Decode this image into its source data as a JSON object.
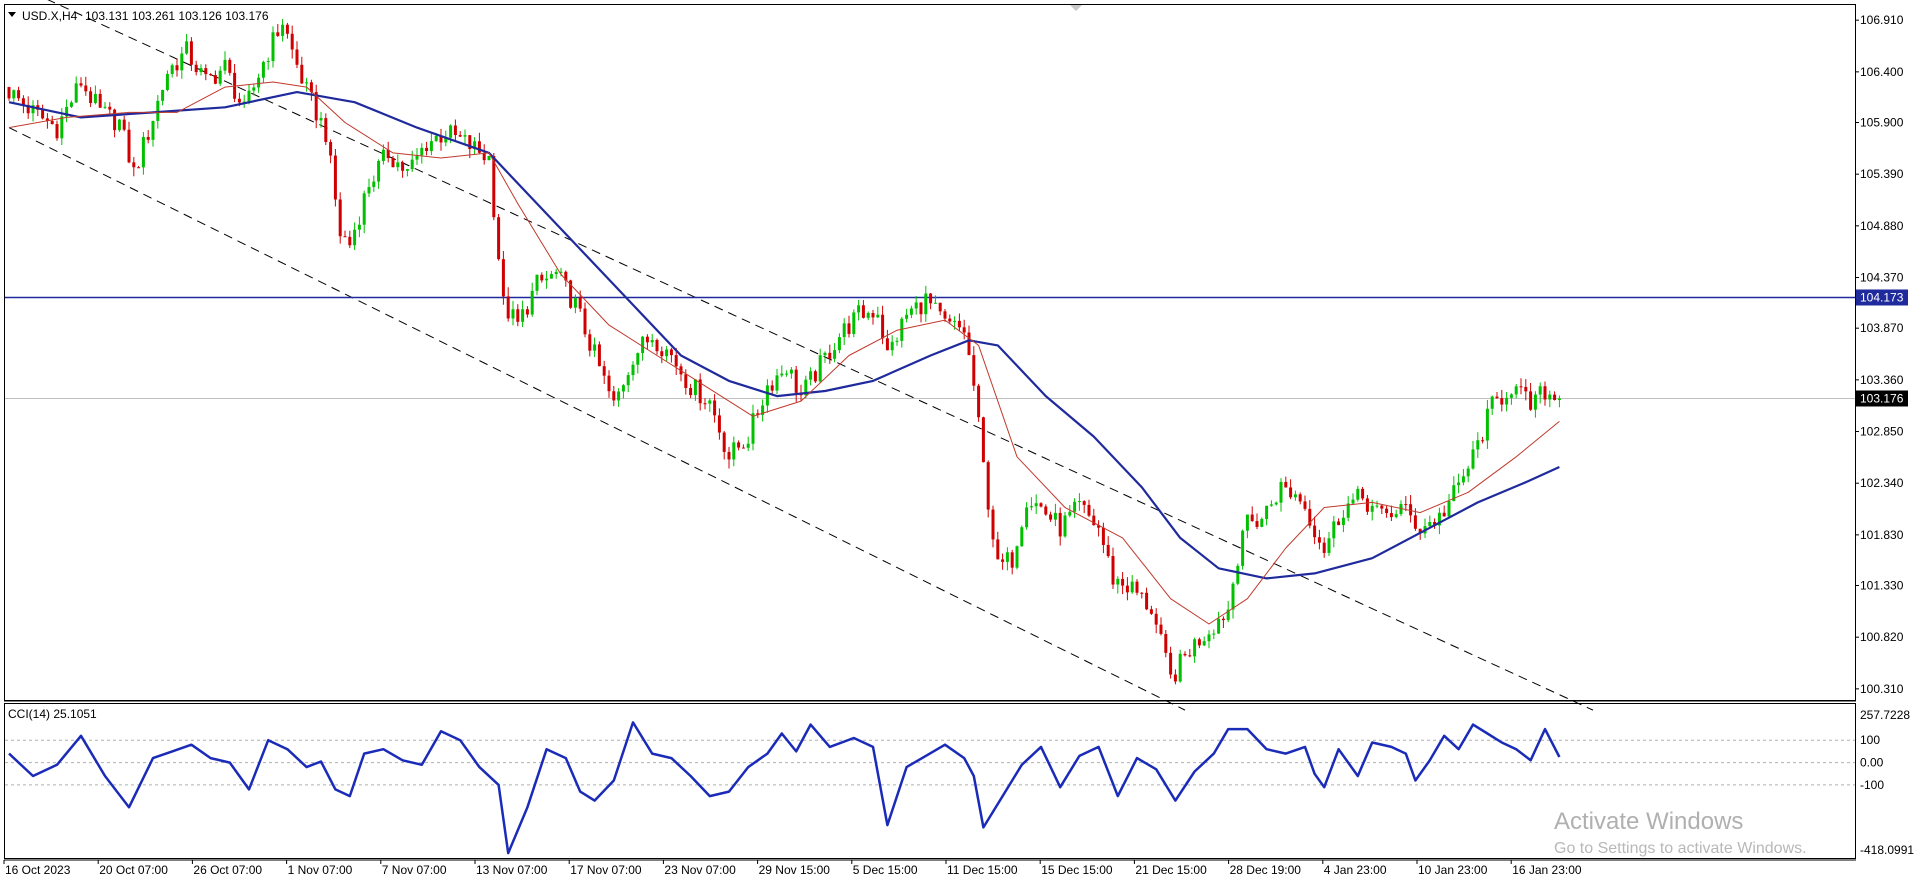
{
  "header": {
    "symbol": "USD.X,H4",
    "ohlc": "103.131 103.261 103.126 103.176"
  },
  "indicator": {
    "label": "CCI(14) 25.1051",
    "levels": [
      100,
      0,
      -100
    ],
    "level_labels": [
      "100",
      "0.00",
      "-100"
    ],
    "max_label": "257.7228",
    "min_label": "-418.0991",
    "ylim": [
      -418.0991,
      257.7228
    ]
  },
  "watermark": {
    "title": "Activate Windows",
    "subtitle": "Go to Settings to activate Windows."
  },
  "colors": {
    "bull": "#00c000",
    "bear": "#d00000",
    "ma_fast": "#c0392b",
    "ma_slow": "#1f2a9c",
    "hline": "#1f2a9c",
    "price_tag": "#1f2a9c",
    "current_tag": "#000000",
    "cci": "#1a2bb8",
    "channel": "#000000"
  },
  "chart_data": {
    "type": "candlestick",
    "symbol": "USD.X",
    "timeframe": "H4",
    "ylim": [
      100.2,
      107.05
    ],
    "y_ticks": [
      "106.910",
      "106.400",
      "105.900",
      "105.390",
      "104.880",
      "104.370",
      "103.870",
      "103.360",
      "102.850",
      "102.340",
      "101.830",
      "101.330",
      "100.820",
      "100.310"
    ],
    "x_ticks": [
      "16 Oct 2023",
      "20 Oct 07:00",
      "26 Oct 07:00",
      "1 Nov 07:00",
      "7 Nov 07:00",
      "13 Nov 07:00",
      "17 Nov 07:00",
      "23 Nov 07:00",
      "29 Nov 15:00",
      "5 Dec 15:00",
      "11 Dec 15:00",
      "15 Dec 15:00",
      "21 Dec 15:00",
      "28 Dec 19:00",
      "4 Jan 23:00",
      "10 Jan 23:00",
      "16 Jan 23:00"
    ],
    "horizontal_line": {
      "value": 104.173,
      "label": "104.173"
    },
    "current_price": {
      "value": 103.176,
      "label": "103.176"
    },
    "price_path": [
      [
        0,
        106.25
      ],
      [
        6,
        106.0
      ],
      [
        11,
        105.85
      ],
      [
        16,
        106.3
      ],
      [
        20,
        106.0
      ],
      [
        24,
        105.9
      ],
      [
        27,
        105.4
      ],
      [
        30,
        105.8
      ],
      [
        34,
        106.4
      ],
      [
        38,
        106.6
      ],
      [
        42,
        106.3
      ],
      [
        46,
        106.45
      ],
      [
        50,
        106.0
      ],
      [
        54,
        106.5
      ],
      [
        58,
        106.9
      ],
      [
        60,
        106.6
      ],
      [
        63,
        106.2
      ],
      [
        67,
        105.8
      ],
      [
        70,
        104.8
      ],
      [
        72,
        104.7
      ],
      [
        76,
        105.3
      ],
      [
        80,
        105.6
      ],
      [
        84,
        105.4
      ],
      [
        88,
        105.7
      ],
      [
        92,
        105.8
      ],
      [
        96,
        105.7
      ],
      [
        101,
        105.55
      ],
      [
        104,
        104.1
      ],
      [
        107,
        103.9
      ],
      [
        111,
        104.3
      ],
      [
        115,
        104.4
      ],
      [
        119,
        104.1
      ],
      [
        123,
        103.6
      ],
      [
        127,
        103.1
      ],
      [
        131,
        103.6
      ],
      [
        135,
        103.8
      ],
      [
        139,
        103.6
      ],
      [
        143,
        103.3
      ],
      [
        147,
        103.15
      ],
      [
        151,
        102.6
      ],
      [
        155,
        102.8
      ],
      [
        159,
        103.3
      ],
      [
        163,
        103.5
      ],
      [
        166,
        103.2
      ],
      [
        170,
        103.5
      ],
      [
        174,
        103.8
      ],
      [
        178,
        104.0
      ],
      [
        182,
        104.05
      ],
      [
        184,
        103.6
      ],
      [
        188,
        104.0
      ],
      [
        192,
        104.15
      ],
      [
        196,
        103.9
      ],
      [
        200,
        103.85
      ],
      [
        202,
        103.3
      ],
      [
        204,
        102.5
      ],
      [
        207,
        101.5
      ],
      [
        210,
        101.6
      ],
      [
        213,
        102.2
      ],
      [
        216,
        102.1
      ],
      [
        220,
        101.9
      ],
      [
        224,
        102.1
      ],
      [
        228,
        101.9
      ],
      [
        231,
        101.4
      ],
      [
        235,
        101.3
      ],
      [
        239,
        101.1
      ],
      [
        243,
        100.4
      ],
      [
        247,
        100.7
      ],
      [
        251,
        100.9
      ],
      [
        255,
        101.1
      ],
      [
        258,
        101.9
      ],
      [
        262,
        102.0
      ],
      [
        266,
        102.3
      ],
      [
        270,
        102.2
      ],
      [
        273,
        101.9
      ],
      [
        275,
        101.7
      ],
      [
        279,
        102.1
      ],
      [
        283,
        102.2
      ],
      [
        287,
        102.0
      ],
      [
        291,
        102.1
      ],
      [
        295,
        101.9
      ],
      [
        299,
        102.0
      ],
      [
        303,
        102.3
      ],
      [
        306,
        102.6
      ],
      [
        310,
        103.1
      ],
      [
        314,
        103.3
      ],
      [
        318,
        103.1
      ],
      [
        321,
        103.25
      ],
      [
        323,
        103.176
      ]
    ],
    "ma_fast": [
      [
        0,
        105.85
      ],
      [
        12,
        105.95
      ],
      [
        25,
        106.0
      ],
      [
        35,
        106.0
      ],
      [
        45,
        106.25
      ],
      [
        55,
        106.3
      ],
      [
        62,
        106.25
      ],
      [
        70,
        105.9
      ],
      [
        80,
        105.6
      ],
      [
        90,
        105.55
      ],
      [
        100,
        105.6
      ],
      [
        106,
        105.1
      ],
      [
        115,
        104.4
      ],
      [
        125,
        103.9
      ],
      [
        135,
        103.6
      ],
      [
        145,
        103.3
      ],
      [
        155,
        103.0
      ],
      [
        165,
        103.15
      ],
      [
        175,
        103.6
      ],
      [
        185,
        103.85
      ],
      [
        195,
        103.95
      ],
      [
        202,
        103.7
      ],
      [
        210,
        102.6
      ],
      [
        220,
        102.1
      ],
      [
        232,
        101.8
      ],
      [
        242,
        101.2
      ],
      [
        250,
        100.95
      ],
      [
        258,
        101.2
      ],
      [
        266,
        101.7
      ],
      [
        274,
        102.1
      ],
      [
        284,
        102.15
      ],
      [
        294,
        102.05
      ],
      [
        304,
        102.25
      ],
      [
        314,
        102.6
      ],
      [
        323,
        102.95
      ]
    ],
    "ma_slow": [
      [
        0,
        106.1
      ],
      [
        15,
        105.95
      ],
      [
        30,
        106.0
      ],
      [
        45,
        106.05
      ],
      [
        60,
        106.2
      ],
      [
        72,
        106.1
      ],
      [
        85,
        105.85
      ],
      [
        100,
        105.6
      ],
      [
        110,
        105.1
      ],
      [
        120,
        104.6
      ],
      [
        130,
        104.1
      ],
      [
        140,
        103.6
      ],
      [
        150,
        103.35
      ],
      [
        160,
        103.2
      ],
      [
        170,
        103.25
      ],
      [
        180,
        103.35
      ],
      [
        192,
        103.6
      ],
      [
        200,
        103.75
      ],
      [
        206,
        103.7
      ],
      [
        216,
        103.2
      ],
      [
        226,
        102.8
      ],
      [
        236,
        102.3
      ],
      [
        244,
        101.8
      ],
      [
        252,
        101.5
      ],
      [
        262,
        101.4
      ],
      [
        272,
        101.45
      ],
      [
        284,
        101.6
      ],
      [
        296,
        101.9
      ],
      [
        306,
        102.15
      ],
      [
        316,
        102.35
      ],
      [
        323,
        102.5
      ]
    ],
    "channel_upper": [
      [
        -12,
        107.55
      ],
      [
        330,
        100.1
      ]
    ],
    "channel_lower": [
      [
        0,
        105.85
      ],
      [
        245,
        100.1
      ]
    ],
    "cci_path": [
      [
        0,
        40
      ],
      [
        5,
        -60
      ],
      [
        10,
        -10
      ],
      [
        15,
        120
      ],
      [
        20,
        -60
      ],
      [
        25,
        -200
      ],
      [
        30,
        20
      ],
      [
        34,
        50
      ],
      [
        38,
        80
      ],
      [
        42,
        20
      ],
      [
        46,
        0
      ],
      [
        50,
        -120
      ],
      [
        54,
        100
      ],
      [
        58,
        60
      ],
      [
        62,
        -20
      ],
      [
        65,
        5
      ],
      [
        68,
        -120
      ],
      [
        71,
        -150
      ],
      [
        74,
        40
      ],
      [
        78,
        60
      ],
      [
        82,
        10
      ],
      [
        86,
        -10
      ],
      [
        90,
        140
      ],
      [
        94,
        100
      ],
      [
        98,
        -20
      ],
      [
        102,
        -100
      ],
      [
        104,
        -405
      ],
      [
        108,
        -200
      ],
      [
        112,
        60
      ],
      [
        116,
        20
      ],
      [
        119,
        -130
      ],
      [
        122,
        -170
      ],
      [
        126,
        -80
      ],
      [
        130,
        180
      ],
      [
        134,
        40
      ],
      [
        138,
        20
      ],
      [
        142,
        -60
      ],
      [
        146,
        -150
      ],
      [
        150,
        -130
      ],
      [
        154,
        -20
      ],
      [
        158,
        40
      ],
      [
        161,
        130
      ],
      [
        164,
        50
      ],
      [
        167,
        170
      ],
      [
        171,
        70
      ],
      [
        176,
        110
      ],
      [
        180,
        70
      ],
      [
        183,
        -280
      ],
      [
        187,
        -20
      ],
      [
        191,
        30
      ],
      [
        195,
        80
      ],
      [
        199,
        20
      ],
      [
        201,
        -60
      ],
      [
        203,
        -290
      ],
      [
        207,
        -150
      ],
      [
        211,
        -10
      ],
      [
        215,
        70
      ],
      [
        219,
        -110
      ],
      [
        223,
        30
      ],
      [
        227,
        70
      ],
      [
        231,
        -150
      ],
      [
        235,
        20
      ],
      [
        239,
        -30
      ],
      [
        243,
        -170
      ],
      [
        247,
        -40
      ],
      [
        251,
        40
      ],
      [
        254,
        150
      ],
      [
        258,
        150
      ],
      [
        262,
        60
      ],
      [
        266,
        40
      ],
      [
        270,
        70
      ],
      [
        272,
        -50
      ],
      [
        274,
        -110
      ],
      [
        277,
        60
      ],
      [
        281,
        -60
      ],
      [
        284,
        90
      ],
      [
        288,
        70
      ],
      [
        291,
        40
      ],
      [
        293,
        -80
      ],
      [
        296,
        10
      ],
      [
        299,
        120
      ],
      [
        302,
        60
      ],
      [
        305,
        170
      ],
      [
        308,
        130
      ],
      [
        311,
        90
      ],
      [
        314,
        60
      ],
      [
        317,
        10
      ],
      [
        320,
        150
      ],
      [
        323,
        25
      ]
    ]
  }
}
